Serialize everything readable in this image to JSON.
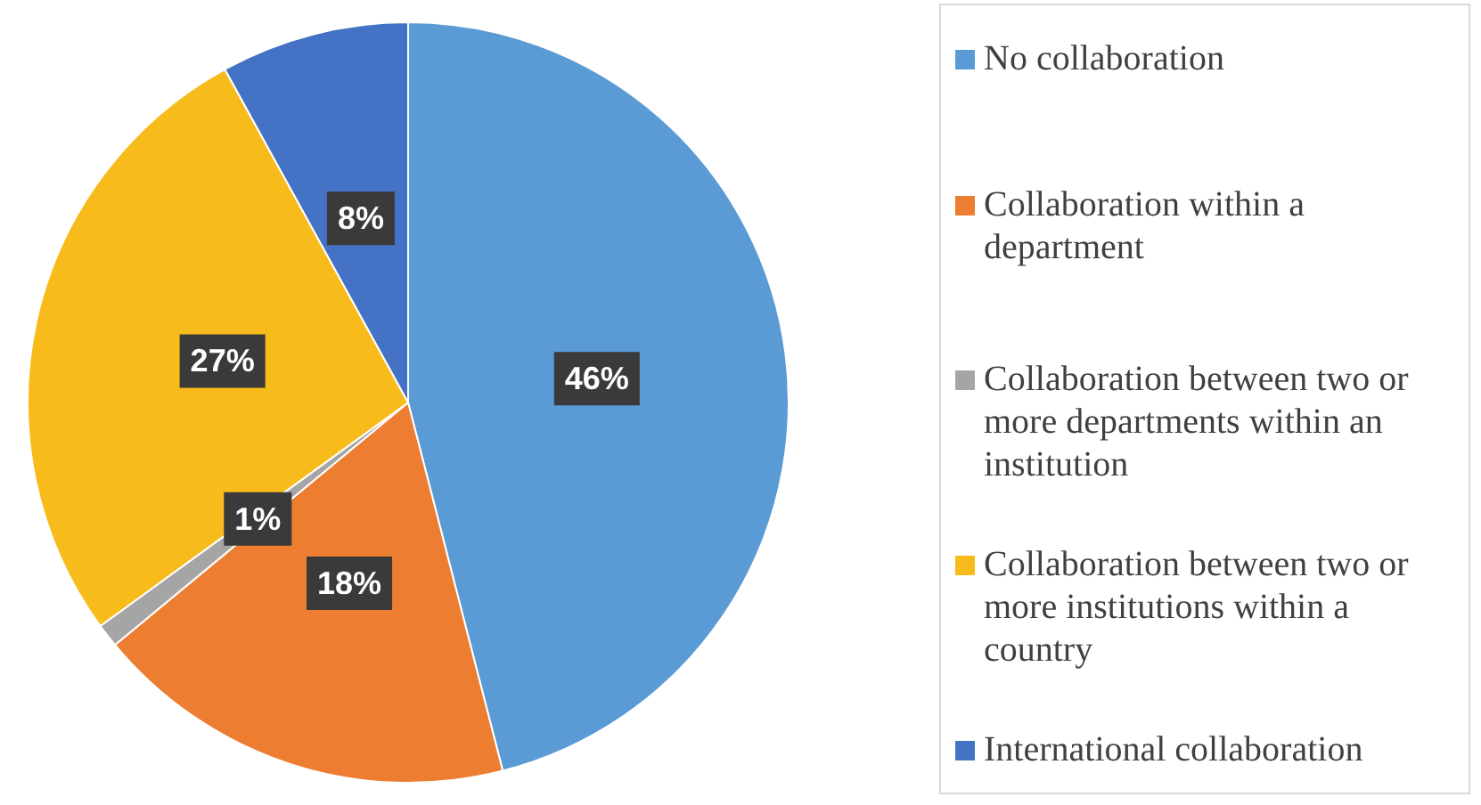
{
  "chart_data": {
    "type": "pie",
    "categories": [
      "No collaboration",
      "Collaboration within a department",
      "Collaboration between two or more departments within an institution",
      "Collaboration between two or more institutions within a country",
      "International collaboration"
    ],
    "values": [
      46,
      18,
      1,
      27,
      8
    ],
    "colors": [
      "#5b9bd5",
      "#ed7d31",
      "#a5a5a5",
      "#f8bb1c",
      "#4472c4"
    ],
    "value_labels": [
      "46%",
      "18%",
      "1%",
      "27%",
      "8%"
    ],
    "legend": "right"
  }
}
